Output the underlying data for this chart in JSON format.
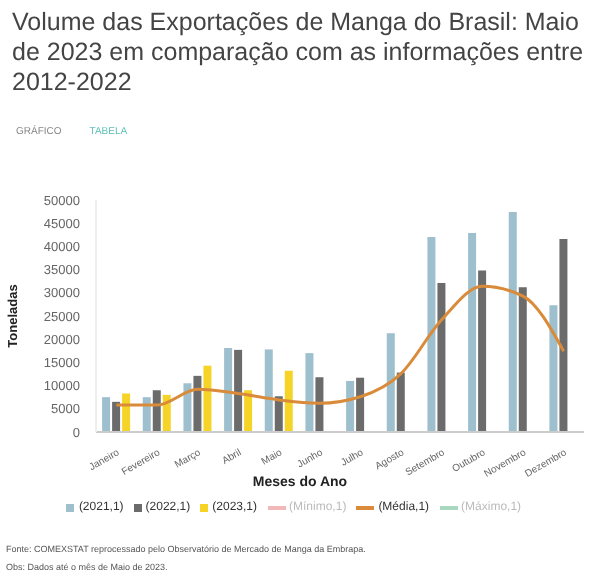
{
  "chart_data": {
    "type": "bar",
    "title": "Volume das Exportações de Manga do Brasil: Maio de 2023 em comparação com as informações entre 2012-2022",
    "xlabel": "Meses do Ano",
    "ylabel": "Toneladas",
    "categories": [
      "Janeiro",
      "Fevereiro",
      "Março",
      "Abril",
      "Maio",
      "Junho",
      "Julho",
      "Agosto",
      "Setembro",
      "Outubro",
      "Novembro",
      "Dezembro"
    ],
    "series": [
      {
        "name": "(2021,1)",
        "color": "#9dbfce",
        "values": [
          7500,
          7500,
          10500,
          18100,
          17800,
          17000,
          11000,
          21300,
          42000,
          42900,
          47400,
          27300
        ]
      },
      {
        "name": "(2022,1)",
        "color": "#6b6b6b",
        "values": [
          6500,
          9000,
          12100,
          17700,
          7700,
          11800,
          11700,
          12800,
          32100,
          34800,
          31200,
          41600
        ]
      },
      {
        "name": "(2023,1)",
        "color": "#f5d327",
        "values": [
          8300,
          8000,
          14300,
          9000,
          13200,
          null,
          null,
          null,
          null,
          null,
          null,
          null
        ]
      },
      {
        "name": "(Mínimo,1)",
        "type": "line",
        "color": "#f2b8b8",
        "values": [
          null,
          null,
          null,
          null,
          null,
          null,
          null,
          null,
          null,
          null,
          null,
          null
        ]
      },
      {
        "name": "(Média,1)",
        "type": "line",
        "color": "#d98b3a",
        "values": [
          5800,
          5800,
          9200,
          8300,
          6900,
          6200,
          7600,
          12600,
          24200,
          31400,
          29300,
          17400
        ]
      },
      {
        "name": "(Máximo,1)",
        "type": "line",
        "color": "#a8d8c0",
        "values": [
          null,
          null,
          null,
          null,
          null,
          null,
          null,
          null,
          null,
          null,
          null,
          null
        ]
      }
    ],
    "ylim": [
      0,
      50000
    ],
    "yticks": [
      0,
      5000,
      10000,
      15000,
      20000,
      25000,
      30000,
      35000,
      40000,
      45000,
      50000
    ],
    "grid": false,
    "legend": "bottom",
    "marker": "none",
    "annotations": [
      "GRÁFICO",
      "TABELA",
      "Fonte: COMEXSTAT reprocessado pelo Observatório de Mercado de Manga da Embrapa.",
      "Obs: Dados até o mês de Maio de 2023."
    ]
  }
}
